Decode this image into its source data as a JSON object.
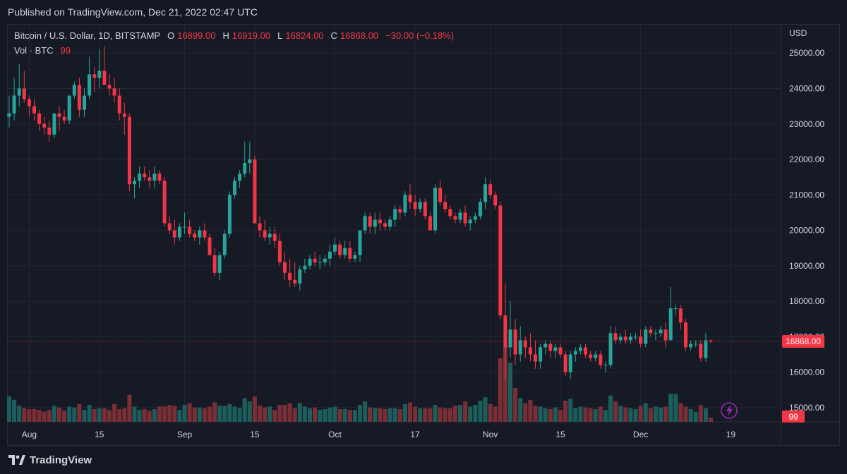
{
  "published": "Published on TradingView.com, Dec 21, 2022 02:47 UTC",
  "legend": {
    "symbol": "Bitcoin / U.S. Dollar, 1D, BITSTAMP",
    "o_label": "O",
    "o_value": "16899.00",
    "h_label": "H",
    "h_value": "16919.00",
    "l_label": "L",
    "l_value": "16824.00",
    "c_label": "C",
    "c_value": "16868.00",
    "change": "−30.00 (−0.18%)",
    "vol_label": "Vol · BTC",
    "vol_value": "99"
  },
  "footer": {
    "brand": "TradingView"
  },
  "colors": {
    "up": "#26a69a",
    "down": "#f23645",
    "up_volume": "#1c5e5c",
    "down_volume": "#7a2f36",
    "background": "#161a25",
    "grid": "#232735",
    "text": "#d1d4dc"
  },
  "chart_data": {
    "type": "candlestick",
    "currency": "USD",
    "last_price": 16868,
    "last_price_label": "16868.00",
    "volume_label": "99",
    "ylim": [
      14600,
      25800
    ],
    "y_ticks": [
      {
        "value": 15000,
        "label": "15000.00"
      },
      {
        "value": 16000,
        "label": "16000.00"
      },
      {
        "value": 17000,
        "label": "17000.00"
      },
      {
        "value": 18000,
        "label": "18000.00"
      },
      {
        "value": 19000,
        "label": "19000.00"
      },
      {
        "value": 20000,
        "label": "20000.00"
      },
      {
        "value": 21000,
        "label": "21000.00"
      },
      {
        "value": 22000,
        "label": "22000.00"
      },
      {
        "value": 23000,
        "label": "23000.00"
      },
      {
        "value": 24000,
        "label": "24000.00"
      },
      {
        "value": 25000,
        "label": "25000.00"
      }
    ],
    "x_ticks": [
      {
        "index": 4,
        "label": "Aug"
      },
      {
        "index": 18,
        "label": "15"
      },
      {
        "index": 35,
        "label": "Sep"
      },
      {
        "index": 49,
        "label": "15"
      },
      {
        "index": 65,
        "label": "Oct"
      },
      {
        "index": 81,
        "label": "17"
      },
      {
        "index": 96,
        "label": "Nov"
      },
      {
        "index": 110,
        "label": "15"
      },
      {
        "index": 126,
        "label": "Dec"
      },
      {
        "index": 144,
        "label": "19"
      }
    ],
    "candles": [
      [
        23200,
        23800,
        22900,
        23300,
        3.0
      ],
      [
        23300,
        24300,
        23100,
        23800,
        2.6
      ],
      [
        23800,
        24700,
        23500,
        24000,
        1.9
      ],
      [
        24000,
        24500,
        23600,
        23700,
        1.6
      ],
      [
        23700,
        23800,
        23200,
        23500,
        1.5
      ],
      [
        23500,
        23700,
        23100,
        23300,
        1.5
      ],
      [
        23300,
        23400,
        22800,
        23000,
        1.4
      ],
      [
        23000,
        23200,
        22700,
        22900,
        1.2
      ],
      [
        22900,
        23100,
        22500,
        22700,
        1.4
      ],
      [
        22700,
        23300,
        22600,
        23300,
        1.9
      ],
      [
        23300,
        23500,
        22800,
        23200,
        1.7
      ],
      [
        23200,
        23400,
        23000,
        23100,
        1.3
      ],
      [
        23100,
        23800,
        23000,
        23800,
        1.8
      ],
      [
        23800,
        24200,
        23700,
        24100,
        1.7
      ],
      [
        24100,
        24300,
        23200,
        23400,
        2.1
      ],
      [
        23400,
        24000,
        23200,
        23800,
        1.4
      ],
      [
        23800,
        24900,
        23700,
        24400,
        2.0
      ],
      [
        24400,
        24600,
        23900,
        24300,
        1.5
      ],
      [
        24300,
        25100,
        24000,
        24500,
        1.6
      ],
      [
        24500,
        25200,
        24100,
        24100,
        1.6
      ],
      [
        24100,
        24400,
        23800,
        24000,
        1.4
      ],
      [
        24000,
        24300,
        23600,
        23800,
        2.1
      ],
      [
        23800,
        24000,
        23100,
        23300,
        1.5
      ],
      [
        23300,
        23600,
        22700,
        23200,
        1.6
      ],
      [
        23200,
        23300,
        21100,
        21300,
        3.2
      ],
      [
        21300,
        21500,
        20900,
        21400,
        1.8
      ],
      [
        21400,
        21800,
        21200,
        21600,
        1.4
      ],
      [
        21600,
        21800,
        21400,
        21500,
        1.5
      ],
      [
        21500,
        21700,
        21200,
        21400,
        1.3
      ],
      [
        21400,
        21800,
        21200,
        21600,
        1.5
      ],
      [
        21600,
        21700,
        21300,
        21400,
        1.8
      ],
      [
        21400,
        21500,
        20100,
        20200,
        1.8
      ],
      [
        20200,
        20400,
        19900,
        20000,
        2.0
      ],
      [
        20000,
        20300,
        19600,
        19800,
        1.9
      ],
      [
        19800,
        20200,
        19700,
        20100,
        1.4
      ],
      [
        20100,
        20500,
        19900,
        20100,
        2.0
      ],
      [
        20100,
        20300,
        19800,
        19900,
        2.2
      ],
      [
        19900,
        20000,
        19700,
        19800,
        1.7
      ],
      [
        19800,
        20100,
        19600,
        20000,
        1.7
      ],
      [
        20000,
        20200,
        19700,
        19800,
        1.6
      ],
      [
        19800,
        19900,
        19300,
        19300,
        1.8
      ],
      [
        19300,
        19500,
        18700,
        18800,
        2.3
      ],
      [
        18800,
        19400,
        18600,
        19300,
        1.9
      ],
      [
        19300,
        20000,
        19200,
        19900,
        1.9
      ],
      [
        19900,
        21100,
        19800,
        21000,
        2.1
      ],
      [
        21000,
        21500,
        20900,
        21400,
        1.8
      ],
      [
        21400,
        21700,
        21200,
        21600,
        1.6
      ],
      [
        21600,
        22500,
        21500,
        21900,
        2.8
      ],
      [
        21900,
        22500,
        21600,
        22000,
        2.4
      ],
      [
        22000,
        22100,
        20200,
        20200,
        3.0
      ],
      [
        20200,
        20400,
        19800,
        20000,
        1.9
      ],
      [
        20000,
        20300,
        19700,
        19800,
        1.7
      ],
      [
        19800,
        20100,
        19600,
        19900,
        1.8
      ],
      [
        19900,
        20100,
        19500,
        19700,
        1.4
      ],
      [
        19700,
        19900,
        19000,
        19100,
        2.0
      ],
      [
        19100,
        19400,
        18600,
        18800,
        2.0
      ],
      [
        18800,
        19200,
        18400,
        18600,
        2.2
      ],
      [
        18600,
        19100,
        18400,
        18500,
        1.6
      ],
      [
        18500,
        19000,
        18300,
        18900,
        2.2
      ],
      [
        18900,
        19200,
        18800,
        19000,
        1.8
      ],
      [
        19000,
        19300,
        18900,
        19200,
        1.6
      ],
      [
        19200,
        19400,
        19000,
        19100,
        1.7
      ],
      [
        19100,
        19300,
        18900,
        19100,
        1.4
      ],
      [
        19100,
        19300,
        19000,
        19200,
        1.5
      ],
      [
        19200,
        19600,
        19000,
        19400,
        1.7
      ],
      [
        19400,
        19800,
        19300,
        19600,
        1.8
      ],
      [
        19600,
        19700,
        19200,
        19300,
        1.5
      ],
      [
        19300,
        19700,
        19200,
        19500,
        1.5
      ],
      [
        19500,
        19700,
        19100,
        19200,
        1.4
      ],
      [
        19200,
        19400,
        19100,
        19300,
        1.4
      ],
      [
        19300,
        20000,
        19100,
        20000,
        2.0
      ],
      [
        20000,
        20500,
        19900,
        20400,
        2.4
      ],
      [
        20400,
        20500,
        19900,
        20100,
        1.7
      ],
      [
        20100,
        20500,
        19900,
        20300,
        1.6
      ],
      [
        20300,
        20500,
        20000,
        20200,
        1.6
      ],
      [
        20200,
        20300,
        20000,
        20100,
        1.5
      ],
      [
        20100,
        20400,
        20000,
        20300,
        1.6
      ],
      [
        20300,
        20700,
        20100,
        20600,
        1.6
      ],
      [
        20600,
        20700,
        20300,
        20500,
        1.5
      ],
      [
        20500,
        21100,
        20400,
        21000,
        2.1
      ],
      [
        21000,
        21300,
        20600,
        20800,
        2.3
      ],
      [
        20800,
        21000,
        20400,
        20600,
        1.8
      ],
      [
        20600,
        20900,
        20500,
        20800,
        1.6
      ],
      [
        20800,
        20900,
        20300,
        20400,
        1.6
      ],
      [
        20400,
        20500,
        20000,
        20000,
        1.6
      ],
      [
        20000,
        21300,
        19900,
        21200,
        2.0
      ],
      [
        21200,
        21400,
        20700,
        20800,
        1.7
      ],
      [
        20800,
        21000,
        20500,
        20600,
        1.6
      ],
      [
        20600,
        20700,
        20300,
        20400,
        1.6
      ],
      [
        20400,
        20500,
        20200,
        20300,
        1.9
      ],
      [
        20300,
        20600,
        20200,
        20500,
        2.0
      ],
      [
        20500,
        20700,
        20100,
        20200,
        2.4
      ],
      [
        20200,
        20400,
        20000,
        20300,
        1.8
      ],
      [
        20300,
        20500,
        20200,
        20400,
        2.0
      ],
      [
        20400,
        20900,
        20300,
        20800,
        2.5
      ],
      [
        20800,
        21500,
        20600,
        21300,
        2.9
      ],
      [
        21300,
        21400,
        20900,
        21000,
        2.1
      ],
      [
        21000,
        21100,
        20600,
        20700,
        1.8
      ],
      [
        20700,
        20800,
        17500,
        17600,
        7.5
      ],
      [
        17600,
        18500,
        15800,
        16700,
        9.0
      ],
      [
        16700,
        18000,
        16400,
        17200,
        7.0
      ],
      [
        17200,
        17500,
        16200,
        16500,
        4.0
      ],
      [
        16500,
        17300,
        16300,
        16900,
        2.8
      ],
      [
        16900,
        17000,
        16400,
        16700,
        2.2
      ],
      [
        16700,
        17100,
        16300,
        16500,
        2.6
      ],
      [
        16500,
        16900,
        16100,
        16300,
        1.9
      ],
      [
        16300,
        16800,
        16100,
        16700,
        1.8
      ],
      [
        16700,
        16900,
        16500,
        16800,
        1.6
      ],
      [
        16800,
        16900,
        16400,
        16600,
        1.5
      ],
      [
        16600,
        16800,
        16400,
        16700,
        1.7
      ],
      [
        16700,
        16800,
        16400,
        16500,
        1.4
      ],
      [
        16500,
        16600,
        15900,
        16000,
        2.5
      ],
      [
        16000,
        16600,
        15800,
        16500,
        2.7
      ],
      [
        16500,
        16700,
        16300,
        16600,
        1.6
      ],
      [
        16600,
        16800,
        16500,
        16700,
        1.8
      ],
      [
        16700,
        16800,
        16400,
        16500,
        1.7
      ],
      [
        16500,
        16600,
        16300,
        16400,
        1.6
      ],
      [
        16400,
        16600,
        16300,
        16500,
        1.5
      ],
      [
        16500,
        16600,
        16100,
        16200,
        1.8
      ],
      [
        16200,
        16300,
        16000,
        16200,
        1.4
      ],
      [
        16200,
        17300,
        16100,
        17100,
        3.1
      ],
      [
        17100,
        17300,
        16800,
        16900,
        2.4
      ],
      [
        16900,
        17100,
        16800,
        17000,
        1.9
      ],
      [
        17000,
        17200,
        16800,
        16900,
        1.7
      ],
      [
        16900,
        17100,
        16800,
        17000,
        1.6
      ],
      [
        17000,
        17100,
        16900,
        17000,
        1.5
      ],
      [
        17000,
        17200,
        16700,
        16800,
        1.9
      ],
      [
        16800,
        17300,
        16700,
        17200,
        2.2
      ],
      [
        17200,
        17300,
        17000,
        17100,
        1.6
      ],
      [
        17100,
        17200,
        16900,
        17100,
        1.8
      ],
      [
        17100,
        17300,
        17000,
        17200,
        1.7
      ],
      [
        17200,
        17400,
        16700,
        16900,
        1.8
      ],
      [
        16900,
        18400,
        16900,
        17800,
        3.3
      ],
      [
        17800,
        17900,
        17600,
        17800,
        3.3
      ],
      [
        17800,
        17900,
        17200,
        17400,
        2.2
      ],
      [
        17400,
        17500,
        16600,
        16700,
        1.8
      ],
      [
        16700,
        16900,
        16600,
        16800,
        1.5
      ],
      [
        16800,
        16900,
        16700,
        16800,
        1.2
      ],
      [
        16800,
        16900,
        16300,
        16400,
        2.0
      ],
      [
        16400,
        17100,
        16300,
        16900,
        1.6
      ],
      [
        16899,
        16919,
        16824,
        16868,
        0.5
      ]
    ]
  }
}
